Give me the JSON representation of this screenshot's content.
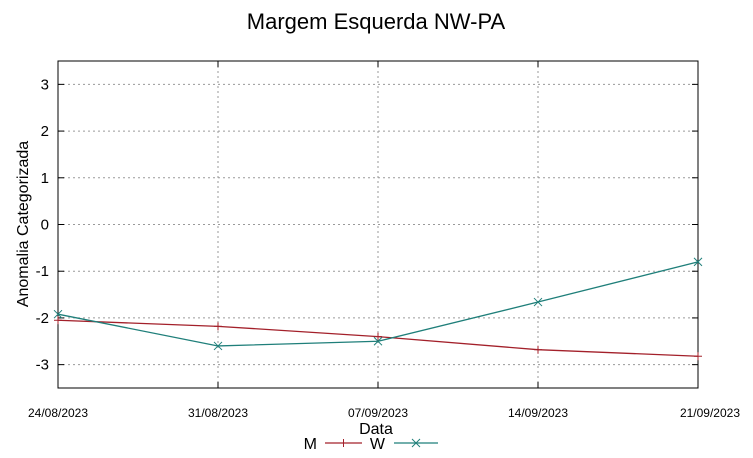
{
  "chart_data": {
    "type": "line",
    "title": "Margem Esquerda NW-PA",
    "xlabel": "Data",
    "ylabel": "Anomalia Categorizada",
    "x": [
      "24/08/2023",
      "31/08/2023",
      "07/09/2023",
      "14/09/2023",
      "21/09/2023"
    ],
    "yticks": [
      3,
      2,
      1,
      0,
      -1,
      -2,
      -3
    ],
    "ylim": [
      -3.5,
      3.5
    ],
    "grid": true,
    "legend_position": "bottom",
    "series": [
      {
        "name": "M",
        "color": "#a3202a",
        "marker": "plus",
        "values": [
          -2.05,
          -2.18,
          -2.4,
          -2.68,
          -2.82
        ]
      },
      {
        "name": "W",
        "color": "#1f7f7a",
        "marker": "cross",
        "values": [
          -1.92,
          -2.6,
          -2.5,
          -1.66,
          -0.8
        ]
      }
    ]
  }
}
